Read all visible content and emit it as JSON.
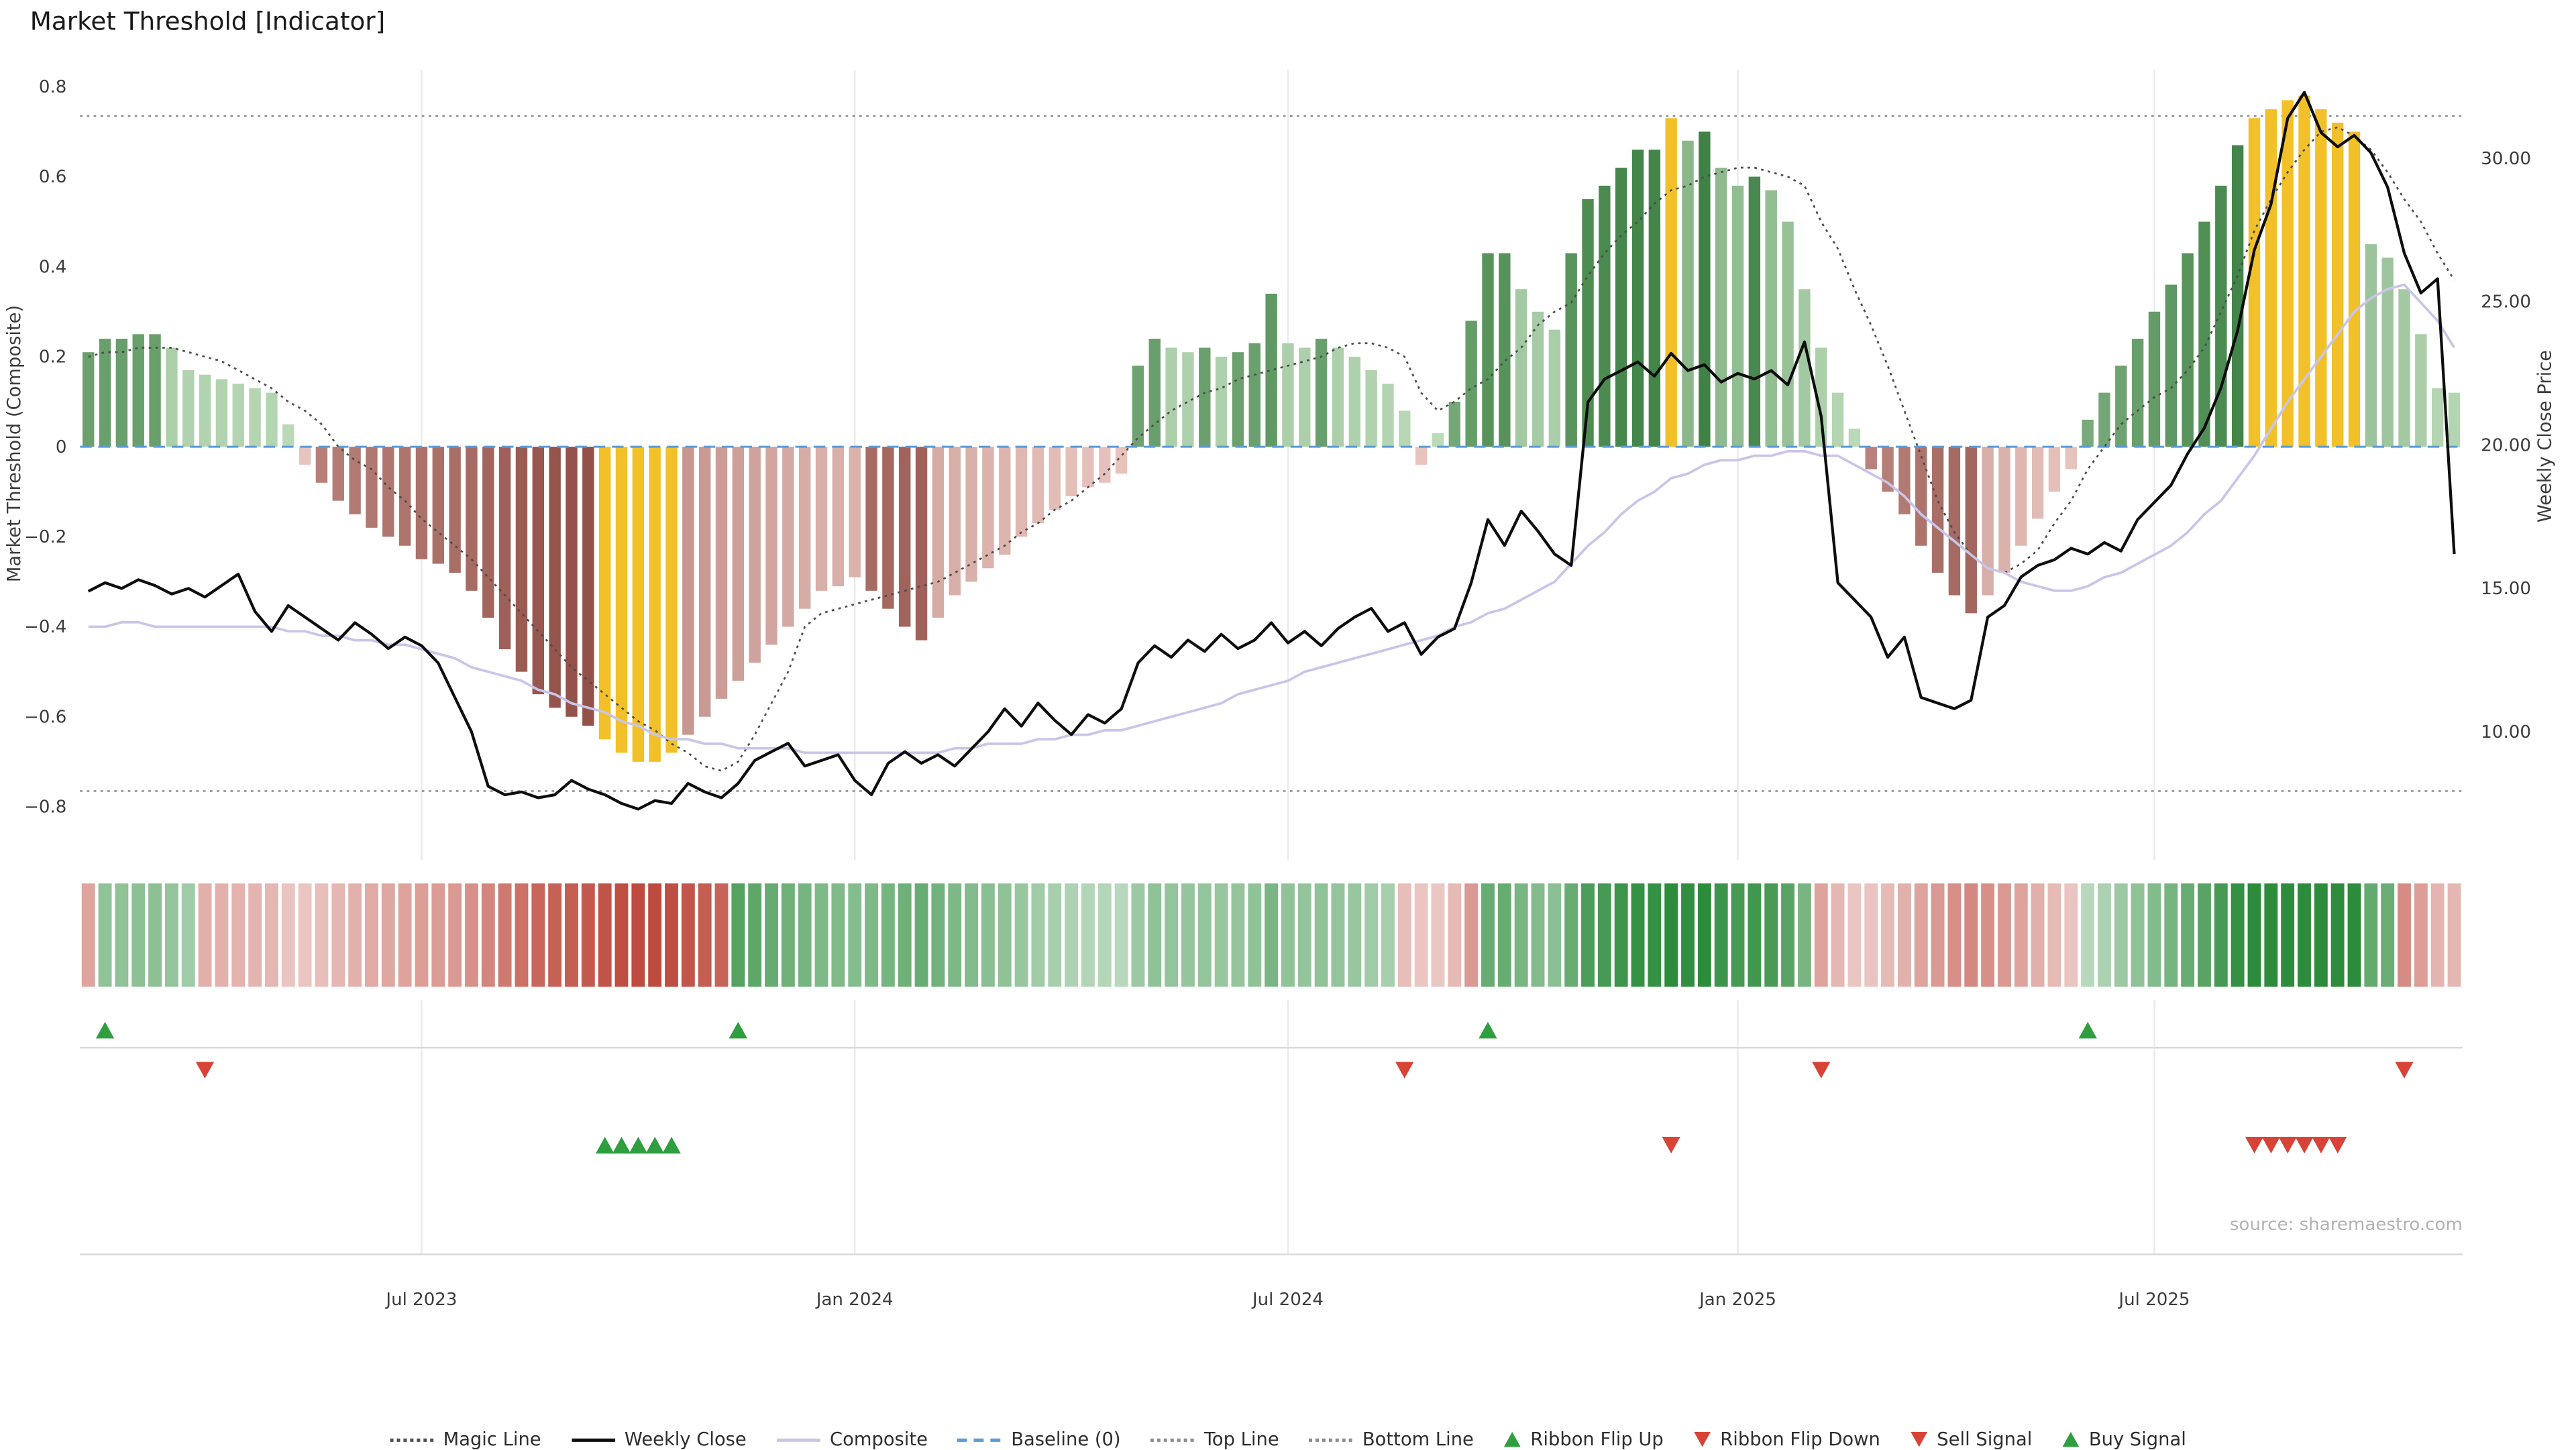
{
  "title": "Market Threshold [Indicator]",
  "source": "source: sharemaestro.com",
  "axes": {
    "left_label": "Market Threshold (Composite)",
    "right_label": "Weekly Close Price",
    "left_ticks": [
      {
        "label": "0.8",
        "v": 0.8
      },
      {
        "label": "0.6",
        "v": 0.6
      },
      {
        "label": "0.4",
        "v": 0.4
      },
      {
        "label": "0.2",
        "v": 0.2
      },
      {
        "label": "0",
        "v": 0
      },
      {
        "label": "−0.2",
        "v": -0.2
      },
      {
        "label": "−0.4",
        "v": -0.4
      },
      {
        "label": "−0.6",
        "v": -0.6
      },
      {
        "label": "−0.8",
        "v": -0.8
      }
    ],
    "right_ticks": [
      {
        "label": "30.00",
        "v": 30
      },
      {
        "label": "25.00",
        "v": 25
      },
      {
        "label": "20.00",
        "v": 20
      },
      {
        "label": "15.00",
        "v": 15
      },
      {
        "label": "10.00",
        "v": 10
      }
    ]
  },
  "x_axis": {
    "ticks": [
      "Jul 2023",
      "Jan 2024",
      "Jul 2024",
      "Jan 2025",
      "Jul 2025"
    ],
    "tick_weeks": [
      20,
      46,
      72,
      99,
      124
    ]
  },
  "colors": {
    "bar_green_light": "#cfe8cb",
    "bar_green_dark": "#3c7f42",
    "bar_red_light": "#f7d9d3",
    "bar_red_dark": "#8a453d",
    "bar_gold": "#f2c029",
    "weekly_close": "#0d0d0d",
    "composite": "#c9c5e8",
    "magic_line": "#4d4d4d",
    "baseline": "#5b9bd5",
    "top_bottom_line": "#8c8c8c",
    "ribbon_green_rgb": "45,140,60",
    "ribbon_red_rgb": "190,75,63",
    "signal_green": "#2e9e3e",
    "signal_red": "#d84338"
  },
  "legend": [
    {
      "label": "Magic Line",
      "type": "dotted",
      "color": "#4d4d4d"
    },
    {
      "label": "Weekly Close",
      "type": "solid",
      "color": "#0d0d0d"
    },
    {
      "label": "Composite",
      "type": "solid",
      "color": "#c9c5e8"
    },
    {
      "label": "Baseline (0)",
      "type": "dashed",
      "color": "#5b9bd5"
    },
    {
      "label": "Top Line",
      "type": "dotted",
      "color": "#8c8c8c"
    },
    {
      "label": "Bottom Line",
      "type": "dotted",
      "color": "#8c8c8c"
    },
    {
      "label": "Ribbon Flip Up",
      "type": "tri-up",
      "color": "#2e9e3e"
    },
    {
      "label": "Ribbon Flip Down",
      "type": "tri-down",
      "color": "#d84338"
    },
    {
      "label": "Sell Signal",
      "type": "tri-down",
      "color": "#d84338"
    },
    {
      "label": "Buy Signal",
      "type": "tri-up",
      "color": "#2e9e3e"
    }
  ],
  "chart_data": {
    "type": "mixed",
    "n_weeks": 143,
    "ylim_left": [
      -0.8,
      0.8
    ],
    "ylim_right": [
      10,
      30
    ],
    "top_line": 0.735,
    "bottom_line": -0.765,
    "baseline": 0,
    "threshold_bars": [
      0.21,
      0.24,
      0.24,
      0.25,
      0.25,
      0.22,
      0.17,
      0.16,
      0.15,
      0.14,
      0.13,
      0.12,
      0.05,
      -0.04,
      -0.08,
      -0.12,
      -0.15,
      -0.18,
      -0.2,
      -0.22,
      -0.25,
      -0.26,
      -0.28,
      -0.32,
      -0.38,
      -0.45,
      -0.5,
      -0.55,
      -0.58,
      -0.6,
      -0.62,
      -0.65,
      -0.68,
      -0.7,
      -0.7,
      -0.68,
      -0.64,
      -0.6,
      -0.56,
      -0.52,
      -0.48,
      -0.44,
      -0.4,
      -0.36,
      -0.32,
      -0.31,
      -0.29,
      -0.32,
      -0.36,
      -0.4,
      -0.43,
      -0.38,
      -0.33,
      -0.3,
      -0.27,
      -0.24,
      -0.2,
      -0.17,
      -0.14,
      -0.11,
      -0.09,
      -0.08,
      -0.06,
      0.18,
      0.24,
      0.22,
      0.21,
      0.22,
      0.2,
      0.21,
      0.23,
      0.34,
      0.23,
      0.22,
      0.24,
      0.22,
      0.2,
      0.17,
      0.14,
      0.08,
      -0.04,
      0.03,
      0.1,
      0.28,
      0.43,
      0.43,
      0.35,
      0.3,
      0.26,
      0.43,
      0.55,
      0.58,
      0.62,
      0.66,
      0.66,
      0.73,
      0.68,
      0.7,
      0.62,
      0.58,
      0.6,
      0.57,
      0.5,
      0.35,
      0.22,
      0.12,
      0.04,
      -0.05,
      -0.1,
      -0.15,
      -0.22,
      -0.28,
      -0.33,
      -0.37,
      -0.33,
      -0.28,
      -0.22,
      -0.16,
      -0.1,
      -0.05,
      0.06,
      0.12,
      0.18,
      0.24,
      0.3,
      0.36,
      0.43,
      0.5,
      0.58,
      0.67,
      0.73,
      0.75,
      0.77,
      0.78,
      0.75,
      0.72,
      0.7,
      0.45,
      0.42,
      0.35,
      0.25,
      0.13,
      0.12
    ],
    "yellow_weeks": [
      31,
      32,
      33,
      34,
      35,
      95,
      130,
      131,
      132,
      133,
      134,
      135,
      136
    ],
    "weekly_close": [
      14.9,
      15.2,
      15.0,
      15.3,
      15.1,
      14.8,
      15.0,
      14.7,
      15.1,
      15.5,
      14.2,
      13.5,
      14.4,
      14.0,
      13.6,
      13.2,
      13.8,
      13.4,
      12.9,
      13.3,
      13.0,
      12.4,
      11.2,
      10.0,
      8.1,
      7.8,
      7.9,
      7.7,
      7.8,
      8.3,
      8.0,
      7.8,
      7.5,
      7.3,
      7.6,
      7.5,
      8.2,
      7.9,
      7.7,
      8.2,
      9.0,
      9.3,
      9.6,
      8.8,
      9.0,
      9.2,
      8.3,
      7.8,
      8.9,
      9.3,
      8.9,
      9.2,
      8.8,
      9.4,
      10.0,
      10.8,
      10.2,
      11.0,
      10.4,
      9.9,
      10.6,
      10.3,
      10.8,
      12.4,
      13.0,
      12.6,
      13.2,
      12.8,
      13.4,
      12.9,
      13.2,
      13.8,
      13.1,
      13.5,
      13.0,
      13.6,
      14.0,
      14.3,
      13.5,
      13.8,
      12.7,
      13.3,
      13.6,
      15.2,
      17.4,
      16.5,
      17.7,
      17.0,
      16.2,
      15.8,
      21.5,
      22.3,
      22.6,
      22.9,
      22.4,
      23.2,
      22.6,
      22.8,
      22.2,
      22.5,
      22.3,
      22.6,
      22.1,
      23.6,
      21.0,
      15.2,
      14.6,
      14.0,
      12.6,
      13.3,
      11.2,
      11.0,
      10.8,
      11.1,
      14.0,
      14.4,
      15.4,
      15.8,
      16.0,
      16.4,
      16.2,
      16.6,
      16.3,
      17.4,
      18.0,
      18.6,
      19.7,
      20.6,
      22.0,
      24.0,
      26.8,
      28.4,
      31.4,
      32.3,
      30.9,
      30.4,
      30.8,
      30.2,
      29.0,
      26.7,
      25.3,
      25.8,
      16.2
    ],
    "composite": [
      -0.4,
      -0.4,
      -0.39,
      -0.39,
      -0.4,
      -0.4,
      -0.4,
      -0.4,
      -0.4,
      -0.4,
      -0.4,
      -0.4,
      -0.41,
      -0.41,
      -0.42,
      -0.42,
      -0.43,
      -0.43,
      -0.44,
      -0.44,
      -0.45,
      -0.46,
      -0.47,
      -0.49,
      -0.5,
      -0.51,
      -0.52,
      -0.54,
      -0.55,
      -0.57,
      -0.58,
      -0.59,
      -0.61,
      -0.62,
      -0.64,
      -0.65,
      -0.65,
      -0.66,
      -0.66,
      -0.67,
      -0.67,
      -0.67,
      -0.67,
      -0.68,
      -0.68,
      -0.68,
      -0.68,
      -0.68,
      -0.68,
      -0.68,
      -0.68,
      -0.68,
      -0.67,
      -0.67,
      -0.66,
      -0.66,
      -0.66,
      -0.65,
      -0.65,
      -0.64,
      -0.64,
      -0.63,
      -0.63,
      -0.62,
      -0.61,
      -0.6,
      -0.59,
      -0.58,
      -0.57,
      -0.55,
      -0.54,
      -0.53,
      -0.52,
      -0.5,
      -0.49,
      -0.48,
      -0.47,
      -0.46,
      -0.45,
      -0.44,
      -0.43,
      -0.42,
      -0.4,
      -0.39,
      -0.37,
      -0.36,
      -0.34,
      -0.32,
      -0.3,
      -0.26,
      -0.22,
      -0.19,
      -0.15,
      -0.12,
      -0.1,
      -0.07,
      -0.06,
      -0.04,
      -0.03,
      -0.03,
      -0.02,
      -0.02,
      -0.01,
      -0.01,
      -0.02,
      -0.02,
      -0.04,
      -0.06,
      -0.08,
      -0.11,
      -0.15,
      -0.18,
      -0.21,
      -0.24,
      -0.27,
      -0.28,
      -0.3,
      -0.31,
      -0.32,
      -0.32,
      -0.31,
      -0.29,
      -0.28,
      -0.26,
      -0.24,
      -0.22,
      -0.19,
      -0.15,
      -0.12,
      -0.07,
      -0.02,
      0.04,
      0.1,
      0.15,
      0.2,
      0.25,
      0.3,
      0.33,
      0.35,
      0.36,
      0.32,
      0.28,
      0.22
    ],
    "magic_line": [
      0.2,
      0.21,
      0.21,
      0.22,
      0.22,
      0.22,
      0.21,
      0.2,
      0.19,
      0.17,
      0.15,
      0.13,
      0.1,
      0.08,
      0.05,
      0.0,
      -0.03,
      -0.05,
      -0.09,
      -0.12,
      -0.16,
      -0.19,
      -0.22,
      -0.25,
      -0.29,
      -0.33,
      -0.37,
      -0.41,
      -0.45,
      -0.49,
      -0.52,
      -0.55,
      -0.58,
      -0.61,
      -0.63,
      -0.66,
      -0.68,
      -0.71,
      -0.72,
      -0.7,
      -0.64,
      -0.57,
      -0.5,
      -0.4,
      -0.37,
      -0.36,
      -0.35,
      -0.34,
      -0.33,
      -0.32,
      -0.31,
      -0.3,
      -0.28,
      -0.26,
      -0.24,
      -0.22,
      -0.19,
      -0.17,
      -0.14,
      -0.12,
      -0.09,
      -0.06,
      -0.02,
      0.02,
      0.05,
      0.08,
      0.1,
      0.12,
      0.13,
      0.15,
      0.16,
      0.17,
      0.18,
      0.19,
      0.2,
      0.22,
      0.23,
      0.23,
      0.22,
      0.2,
      0.12,
      0.08,
      0.1,
      0.13,
      0.15,
      0.19,
      0.22,
      0.27,
      0.3,
      0.32,
      0.38,
      0.43,
      0.47,
      0.5,
      0.54,
      0.57,
      0.58,
      0.6,
      0.61,
      0.62,
      0.62,
      0.61,
      0.6,
      0.58,
      0.5,
      0.44,
      0.35,
      0.27,
      0.18,
      0.08,
      -0.02,
      -0.12,
      -0.19,
      -0.24,
      -0.27,
      -0.28,
      -0.26,
      -0.23,
      -0.17,
      -0.12,
      -0.05,
      0.0,
      0.05,
      0.08,
      0.11,
      0.13,
      0.17,
      0.22,
      0.3,
      0.38,
      0.48,
      0.55,
      0.61,
      0.66,
      0.7,
      0.71,
      0.69,
      0.66,
      0.61,
      0.55,
      0.5,
      0.43,
      0.37
    ],
    "ribbon_segments": [
      {
        "start": 0,
        "end": 0,
        "state": "red"
      },
      {
        "start": 1,
        "end": 6,
        "state": "green"
      },
      {
        "start": 7,
        "end": 38,
        "state": "red"
      },
      {
        "start": 39,
        "end": 78,
        "state": "green"
      },
      {
        "start": 79,
        "end": 83,
        "state": "red"
      },
      {
        "start": 84,
        "end": 103,
        "state": "green"
      },
      {
        "start": 104,
        "end": 119,
        "state": "red"
      },
      {
        "start": 120,
        "end": 138,
        "state": "green"
      },
      {
        "start": 139,
        "end": 142,
        "state": "red"
      }
    ],
    "signals": {
      "ribbon_flip_up": [
        1,
        39,
        84,
        120
      ],
      "ribbon_flip_down": [
        7,
        79,
        104,
        139
      ],
      "buy": [
        31,
        32,
        33,
        34,
        35
      ],
      "sell": [
        95,
        130,
        131,
        132,
        133,
        134,
        135
      ]
    }
  }
}
